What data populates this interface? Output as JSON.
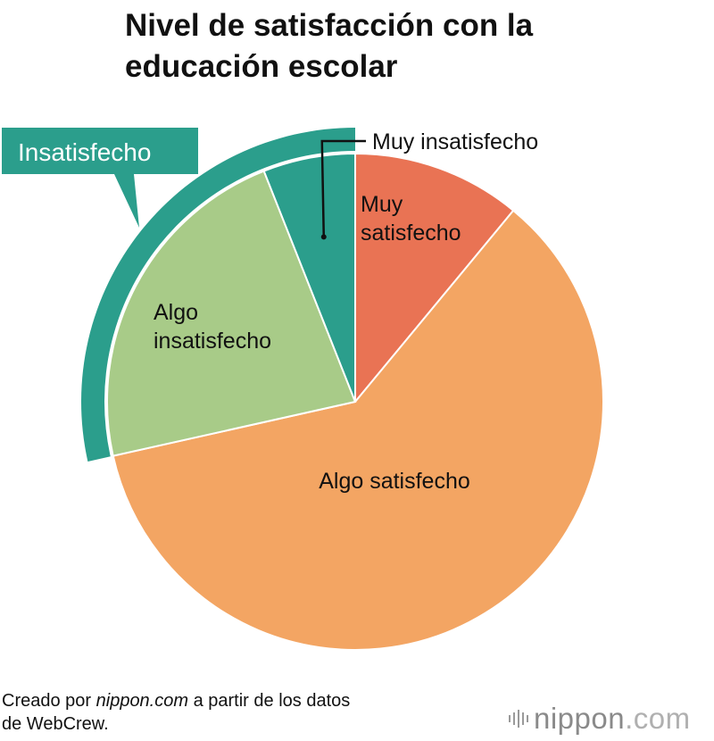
{
  "chart_data": {
    "type": "pie",
    "title": "Nivel de satisfacción con la educación escolar",
    "categories": [
      "Muy satisfecho",
      "Algo satisfecho",
      "Algo insatisfecho",
      "Muy insatisfecho"
    ],
    "values": [
      11.0,
      60.5,
      22.5,
      6.0
    ],
    "colors": [
      "#e97354",
      "#f3a563",
      "#a8cb88",
      "#2b9e8c"
    ],
    "slice_labels": [
      [
        "Muy",
        "satisfecho"
      ],
      [
        "Algo satisfecho"
      ],
      [
        "Algo",
        "insatisfecho"
      ],
      []
    ],
    "callout_label": "Muy insatisfecho",
    "group": {
      "label": "Insatisfecho",
      "members": [
        "Algo insatisfecho",
        "Muy insatisfecho"
      ],
      "color": "#2b9e8c"
    },
    "start_angle": "12 o'clock",
    "direction": "clockwise"
  },
  "footer": {
    "prefix": "Creado por ",
    "source_site": "nippon.com",
    "suffix": " a partir de los datos",
    "line2": "de WebCrew."
  },
  "brand": {
    "name_main": "nippon",
    "name_suffix": ".com",
    "logo_icon": "sound-bars-icon"
  }
}
